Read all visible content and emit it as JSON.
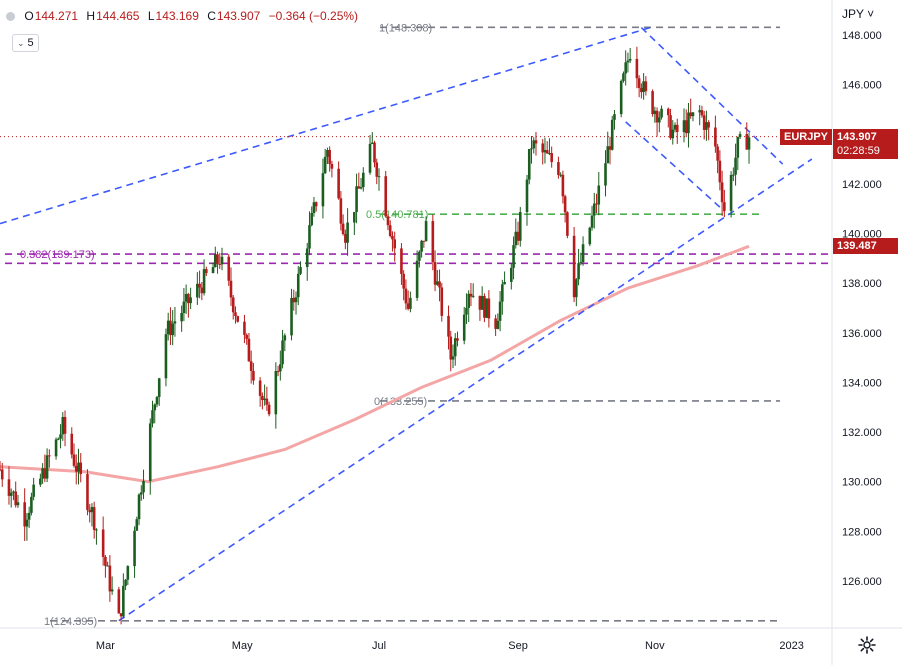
{
  "header": {
    "ohlc": [
      {
        "key": "O",
        "value": "144.271"
      },
      {
        "key": "H",
        "value": "144.465"
      },
      {
        "key": "L",
        "value": "143.169"
      },
      {
        "key": "C",
        "value": "143.907"
      }
    ],
    "change": "−0.364 (−0.25%)",
    "volume_value": "5"
  },
  "currency_label": "JPY",
  "price_tag": {
    "symbol": "EURJPY",
    "price": "143.907",
    "countdown": "02:28:59",
    "color": "#b71c1c"
  },
  "ma_tag": {
    "price": "139.487",
    "color": "#b71c1c"
  },
  "icons": [
    "settings-gear-icon",
    "eye-icon",
    "chevron-down-icon"
  ],
  "colors": {
    "up": "#1b5e20",
    "down": "#b71c1c",
    "trend": "#3d5afe",
    "fib": "#9c27b0",
    "ma": "#f4a6a6",
    "green_level": "#4caf50",
    "grey_level": "#787b86"
  },
  "chart_data": {
    "type": "candlestick",
    "symbol": "EURJPY",
    "ylim": [
      124.0,
      149.0
    ],
    "y_ticks": [
      "148.000",
      "146.000",
      "144.000",
      "142.000",
      "140.000",
      "138.000",
      "136.000",
      "134.000",
      "132.000",
      "130.000",
      "128.000",
      "126.000"
    ],
    "x_ticks": [
      {
        "label": "Mar",
        "date": "2022-03-01"
      },
      {
        "label": "May",
        "date": "2022-05-01"
      },
      {
        "label": "Jul",
        "date": "2022-07-01"
      },
      {
        "label": "Sep",
        "date": "2022-09-01"
      },
      {
        "label": "Nov",
        "date": "2022-11-01"
      },
      {
        "label": "2023",
        "date": "2023-01-01"
      }
    ],
    "xlim": [
      "2022-01-13",
      "2023-01-19"
    ],
    "candle_anchors": [
      {
        "date": "2022-01-13",
        "close": 130.5
      },
      {
        "date": "2022-01-24",
        "close": 128.6
      },
      {
        "date": "2022-02-10",
        "close": 132.2
      },
      {
        "date": "2022-02-24",
        "close": 128.5
      },
      {
        "date": "2022-03-07",
        "close": 124.4
      },
      {
        "date": "2022-03-28",
        "close": 136.0
      },
      {
        "date": "2022-04-21",
        "close": 139.0
      },
      {
        "date": "2022-05-12",
        "close": 132.7
      },
      {
        "date": "2022-06-01",
        "close": 140.5
      },
      {
        "date": "2022-06-08",
        "close": 143.4
      },
      {
        "date": "2022-06-16",
        "close": 140.0
      },
      {
        "date": "2022-06-28",
        "close": 143.5
      },
      {
        "date": "2022-07-14",
        "close": 137.0
      },
      {
        "date": "2022-07-22",
        "close": 140.3
      },
      {
        "date": "2022-08-02",
        "close": 135.0
      },
      {
        "date": "2022-08-10",
        "close": 137.8
      },
      {
        "date": "2022-08-22",
        "close": 136.5
      },
      {
        "date": "2022-09-01",
        "close": 140.0
      },
      {
        "date": "2022-09-07",
        "close": 143.6
      },
      {
        "date": "2022-09-20",
        "close": 142.6
      },
      {
        "date": "2022-09-26",
        "close": 137.8
      },
      {
        "date": "2022-10-06",
        "close": 141.3
      },
      {
        "date": "2022-10-21",
        "close": 147.4
      },
      {
        "date": "2022-10-28",
        "close": 145.5
      },
      {
        "date": "2022-11-10",
        "close": 144.0
      },
      {
        "date": "2022-11-21",
        "close": 144.9
      },
      {
        "date": "2022-11-28",
        "close": 143.5
      },
      {
        "date": "2022-12-02",
        "close": 141.0
      },
      {
        "date": "2022-12-08",
        "close": 143.5
      },
      {
        "date": "2022-12-13",
        "close": 143.9
      }
    ],
    "moving_average": [
      {
        "date": "2022-01-13",
        "value": 130.6
      },
      {
        "date": "2022-02-20",
        "value": 130.4
      },
      {
        "date": "2022-03-20",
        "value": 130.0
      },
      {
        "date": "2022-04-20",
        "value": 130.6
      },
      {
        "date": "2022-05-20",
        "value": 131.3
      },
      {
        "date": "2022-06-20",
        "value": 132.5
      },
      {
        "date": "2022-07-20",
        "value": 133.8
      },
      {
        "date": "2022-08-20",
        "value": 134.9
      },
      {
        "date": "2022-09-20",
        "value": 136.5
      },
      {
        "date": "2022-10-20",
        "value": 137.8
      },
      {
        "date": "2022-11-20",
        "value": 138.7
      },
      {
        "date": "2022-12-13",
        "value": 139.487
      }
    ],
    "horizontal_levels": [
      {
        "label": "1(148.308)",
        "value": 148.308,
        "style": "grey"
      },
      {
        "label": "0.5(140.781)",
        "value": 140.781,
        "style": "green"
      },
      {
        "label": "0.382(139.173)",
        "value": 139.173,
        "style": "purple"
      },
      {
        "label": "",
        "value": 138.8,
        "style": "purple"
      },
      {
        "label": "0(133.255)",
        "value": 133.255,
        "style": "grey"
      },
      {
        "label": "1(124.395)",
        "value": 124.395,
        "style": "grey"
      }
    ],
    "trendlines": [
      {
        "from": [
          "2022-01-13",
          140.4
        ],
        "to": [
          "2022-10-30",
          148.3
        ]
      },
      {
        "from": [
          "2022-03-07",
          124.4
        ],
        "to": [
          "2023-01-10",
          143.0
        ]
      },
      {
        "from": [
          "2022-10-19",
          144.5
        ],
        "to": [
          "2022-12-02",
          140.9
        ]
      },
      {
        "from": [
          "2022-10-26",
          148.3
        ],
        "to": [
          "2022-12-28",
          142.8
        ]
      }
    ],
    "current_price": 143.907
  }
}
